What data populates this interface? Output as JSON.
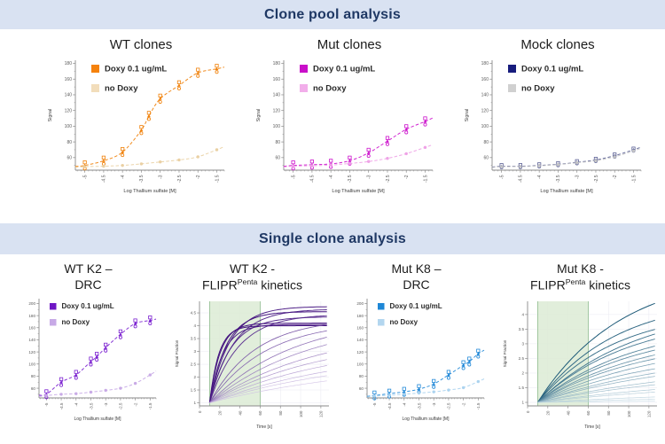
{
  "banners": {
    "top": "Clone pool analysis",
    "bottom": "Single clone analysis"
  },
  "colors": {
    "banner_bg": "#d9e2f2",
    "banner_text": "#1f3864",
    "axis": "#8a8a8a",
    "tick_text": "#5a5a5a",
    "grid": "#e9e9f1",
    "region_fill": "#dcebd5",
    "region_edge": "#8fbc8f",
    "legend_text": "#2a2a2a"
  },
  "chart_data": [
    {
      "id": "wt-clones",
      "type": "scatter",
      "variant": "large",
      "section": "top",
      "title_lines": [
        [
          {
            "t": "WT clones"
          }
        ]
      ],
      "xlabel": "Log Thallium sulfate [M]",
      "ylabel": "Signal",
      "xlim": [
        -5.25,
        -1.3
      ],
      "ylim": [
        44,
        184
      ],
      "xticks": [
        -5,
        -4.5,
        -4,
        -3.5,
        -3,
        -2.5,
        -2,
        -1.5
      ],
      "yticks": [
        60,
        80,
        100,
        120,
        140,
        160,
        180
      ],
      "legend": [
        {
          "label": "Doxy 0.1 ug/mL",
          "color": "#f5820d"
        },
        {
          "label": "no Doxy",
          "color": "#f2ddbb"
        }
      ],
      "series": [
        {
          "name": "Doxy 0.1 ug/mL",
          "color": "#f08008",
          "marker": "cluster",
          "spread": 4,
          "x": [
            -5,
            -4.5,
            -4,
            -3.5,
            -3.3,
            -3,
            -2.5,
            -2,
            -1.5
          ],
          "y": [
            50,
            56,
            67,
            95,
            113,
            135,
            152,
            168,
            173
          ]
        },
        {
          "name": "no Doxy",
          "color": "#e9cfa0",
          "marker": "dot",
          "spread": 0,
          "x": [
            -5,
            -4.5,
            -4,
            -3.5,
            -3,
            -2.5,
            -2,
            -1.5
          ],
          "y": [
            48.5,
            49,
            50,
            52,
            54.5,
            57,
            61,
            70
          ]
        }
      ]
    },
    {
      "id": "mut-clones",
      "type": "scatter",
      "variant": "large",
      "section": "top",
      "title_lines": [
        [
          {
            "t": "Mut clones"
          }
        ]
      ],
      "xlabel": "Log Thallium sulfate [M]",
      "ylabel": "Signal",
      "xlim": [
        -5.25,
        -1.3
      ],
      "ylim": [
        44,
        184
      ],
      "xticks": [
        -5,
        -4.5,
        -4,
        -3.5,
        -3,
        -2.5,
        -2,
        -1.5
      ],
      "yticks": [
        60,
        80,
        100,
        120,
        140,
        160,
        180
      ],
      "legend": [
        {
          "label": "Doxy 0.1 ug/mL",
          "color": "#c90fc9"
        },
        {
          "label": "no Doxy",
          "color": "#f2aeea"
        }
      ],
      "series": [
        {
          "name": "Doxy 0.1 ug/mL",
          "color": "#cc10cc",
          "marker": "cluster",
          "spread": 4,
          "x": [
            -5,
            -4.5,
            -4,
            -3.5,
            -3,
            -2.5,
            -2,
            -1.5
          ],
          "y": [
            50,
            51,
            52,
            56,
            66,
            81,
            96,
            106
          ]
        },
        {
          "name": "no Doxy",
          "color": "#ee9fe6",
          "marker": "dot",
          "spread": 0,
          "x": [
            -5,
            -4.5,
            -4,
            -3.5,
            -3,
            -2.5,
            -2,
            -1.5
          ],
          "y": [
            49,
            49.5,
            50.5,
            52.5,
            55,
            59,
            65,
            73
          ]
        }
      ]
    },
    {
      "id": "mock-clones",
      "type": "scatter",
      "variant": "large",
      "section": "top",
      "title_lines": [
        [
          {
            "t": "Mock clones"
          }
        ]
      ],
      "xlabel": "Log Thallium sulfate [M]",
      "ylabel": "Signal",
      "xlim": [
        -5.25,
        -1.3
      ],
      "ylim": [
        44,
        184
      ],
      "xticks": [
        -5,
        -4.5,
        -4,
        -3.5,
        -3,
        -2.5,
        -2,
        -1.5
      ],
      "yticks": [
        60,
        80,
        100,
        120,
        140,
        160,
        180
      ],
      "legend": [
        {
          "label": "Doxy 0.1 ug/mL",
          "color": "#171c7d"
        },
        {
          "label": "no Doxy",
          "color": "#d0d0d0"
        }
      ],
      "series": [
        {
          "name": "Doxy 0.1 ug/mL",
          "color": "#5a5f94",
          "marker": "cluster",
          "spread": 1.5,
          "x": [
            -5,
            -4.5,
            -4,
            -3.5,
            -3,
            -2.5,
            -2,
            -1.5
          ],
          "y": [
            49,
            49,
            50,
            51.5,
            54,
            57,
            62.5,
            70
          ]
        },
        {
          "name": "no Doxy",
          "color": "#c6c6c6",
          "marker": "dot",
          "spread": 0,
          "x": [
            -5,
            -4.5,
            -4,
            -3.5,
            -3,
            -2.5,
            -2,
            -1.5
          ],
          "y": [
            48.5,
            48.5,
            49.5,
            51,
            53.5,
            56,
            61,
            68.5
          ]
        }
      ]
    },
    {
      "id": "wt-k2-drc",
      "type": "scatter",
      "variant": "small",
      "section": "bottom",
      "title_lines": [
        [
          {
            "t": "WT K2 –"
          }
        ],
        [
          {
            "t": "DRC"
          }
        ]
      ],
      "xlabel": "Log Thallium sulfate [M]",
      "ylabel": "",
      "xlim": [
        -5.25,
        -1.3
      ],
      "ylim": [
        44,
        208
      ],
      "xticks": [
        -5,
        -4.5,
        -4,
        -3.5,
        -3,
        -2.5,
        -2,
        -1.5
      ],
      "yticks": [
        60,
        80,
        100,
        120,
        140,
        160,
        180,
        200
      ],
      "legend": [
        {
          "label": "Doxy 0.1 ug/mL",
          "color": "#6e16c4"
        },
        {
          "label": "no Doxy",
          "color": "#c7a9e6"
        }
      ],
      "series": [
        {
          "name": "Doxy 0.1 ug/mL",
          "color": "#7a1fd0",
          "marker": "cluster",
          "spread": 5,
          "x": [
            -5,
            -4.5,
            -4,
            -3.5,
            -3.3,
            -3,
            -2.5,
            -2,
            -1.5
          ],
          "y": [
            50,
            70,
            82,
            104,
            112,
            127,
            149,
            167,
            172
          ]
        },
        {
          "name": "no Doxy",
          "color": "#c7a9e6",
          "marker": "dot",
          "spread": 0,
          "x": [
            -5,
            -4.5,
            -4,
            -3.5,
            -3,
            -2.5,
            -2,
            -1.5
          ],
          "y": [
            48,
            50,
            51,
            53.5,
            56.5,
            60,
            68,
            82
          ]
        }
      ]
    },
    {
      "id": "wt-k2-kinetics",
      "type": "line",
      "variant": "kinetics",
      "section": "bottom",
      "title_lines": [
        [
          {
            "t": "WT K2 -"
          }
        ],
        [
          {
            "t": "FLIPR"
          },
          {
            "t": "Penta",
            "sup": true
          },
          {
            "t": " kinetics"
          }
        ]
      ],
      "xlabel": "Time [s]",
      "ylabel": "Signal Fraction",
      "xlim": [
        0,
        128
      ],
      "ylim": [
        0.88,
        4.95
      ],
      "xticks": [
        0,
        20,
        40,
        60,
        80,
        100,
        120
      ],
      "yticks": [
        1,
        1.5,
        2,
        2.5,
        3,
        3.5,
        4,
        4.5
      ],
      "grid": true,
      "region": {
        "x0": 10,
        "x1": 60
      },
      "t_start": 10,
      "t_end": 126,
      "curve_model": "y = 1 + a*(1 - exp(-k*(t - 10)))",
      "color_dark": "#43127f",
      "color_light": "#dccfee",
      "curves": [
        {
          "a": 3.75,
          "k": 0.05,
          "tone": 0.05
        },
        {
          "a": 3.65,
          "k": 0.042,
          "tone": 0.1
        },
        {
          "a": 3.55,
          "k": 0.06,
          "tone": 0.0
        },
        {
          "a": 3.45,
          "k": 0.035,
          "tone": 0.15
        },
        {
          "a": 3.35,
          "k": 0.048,
          "tone": 0.1
        },
        {
          "a": 3.1,
          "k": 0.095,
          "tone": 0.0
        },
        {
          "a": 3.05,
          "k": 0.075,
          "tone": 0.05
        },
        {
          "a": 3.0,
          "k": 0.11,
          "tone": 0.0
        },
        {
          "a": 3.3,
          "k": 0.022,
          "tone": 0.35
        },
        {
          "a": 3.2,
          "k": 0.018,
          "tone": 0.4
        },
        {
          "a": 3.4,
          "k": 0.012,
          "tone": 0.45
        },
        {
          "a": 3.3,
          "k": 0.01,
          "tone": 0.55
        },
        {
          "a": 3.0,
          "k": 0.009,
          "tone": 0.6
        },
        {
          "a": 2.6,
          "k": 0.009,
          "tone": 0.65
        },
        {
          "a": 2.4,
          "k": 0.008,
          "tone": 0.72
        },
        {
          "a": 2.2,
          "k": 0.007,
          "tone": 0.78
        },
        {
          "a": 1.9,
          "k": 0.007,
          "tone": 0.85
        },
        {
          "a": 1.7,
          "k": 0.006,
          "tone": 0.9
        }
      ]
    },
    {
      "id": "mut-k8-drc",
      "type": "scatter",
      "variant": "small",
      "section": "bottom",
      "title_lines": [
        [
          {
            "t": "Mut K8 –"
          }
        ],
        [
          {
            "t": "DRC"
          }
        ]
      ],
      "xlabel": "Log Thallium sulfate [M]",
      "ylabel": "",
      "xlim": [
        -5.25,
        -1.3
      ],
      "ylim": [
        44,
        208
      ],
      "xticks": [
        -5,
        -4.5,
        -4,
        -3.5,
        -3,
        -2.5,
        -2,
        -1.5
      ],
      "yticks": [
        60,
        80,
        100,
        120,
        140,
        160,
        180,
        200
      ],
      "legend": [
        {
          "label": "Doxy 0.1 ug/mL",
          "color": "#1e87d6"
        },
        {
          "label": "no Doxy",
          "color": "#b3d6ef"
        }
      ],
      "series": [
        {
          "name": "Doxy 0.1 ug/mL",
          "color": "#2289d8",
          "marker": "cluster",
          "spread": 5,
          "x": [
            -5,
            -4.5,
            -4,
            -3.5,
            -3,
            -2.5,
            -2,
            -1.8,
            -1.5
          ],
          "y": [
            48,
            51,
            54,
            58.5,
            67,
            82,
            98,
            104,
            117
          ]
        },
        {
          "name": "no Doxy",
          "color": "#a9d2ee",
          "marker": "dot",
          "spread": 0,
          "x": [
            -5,
            -4.5,
            -4,
            -3.5,
            -3,
            -2.5,
            -2,
            -1.5
          ],
          "y": [
            47,
            48.5,
            50,
            52,
            54,
            57,
            61,
            71
          ]
        }
      ]
    },
    {
      "id": "mut-k8-kinetics",
      "type": "line",
      "variant": "kinetics",
      "section": "bottom",
      "title_lines": [
        [
          {
            "t": "Mut K8 -"
          }
        ],
        [
          {
            "t": "FLIPR"
          },
          {
            "t": "Penta",
            "sup": true
          },
          {
            "t": " kinetics"
          }
        ]
      ],
      "xlabel": "Time [s]",
      "ylabel": "Signal Fraction",
      "xlim": [
        0,
        128
      ],
      "ylim": [
        0.88,
        4.45
      ],
      "xticks": [
        0,
        20,
        40,
        60,
        80,
        100,
        120
      ],
      "yticks": [
        1,
        1.5,
        2,
        2.5,
        3,
        3.5,
        4
      ],
      "grid": true,
      "region": {
        "x0": 10,
        "x1": 60
      },
      "t_start": 10,
      "t_end": 126,
      "curve_model": "y = 1 + a*(1 - exp(-k*(t - 10)))",
      "color_dark": "#1d5a78",
      "color_light": "#c5dbe6",
      "curves": [
        {
          "a": 4.5,
          "k": 0.012,
          "tone": 0.0
        },
        {
          "a": 3.6,
          "k": 0.013,
          "tone": 0.08
        },
        {
          "a": 3.2,
          "k": 0.013,
          "tone": 0.12
        },
        {
          "a": 3.4,
          "k": 0.01,
          "tone": 0.18
        },
        {
          "a": 3.0,
          "k": 0.011,
          "tone": 0.22
        },
        {
          "a": 2.8,
          "k": 0.01,
          "tone": 0.28
        },
        {
          "a": 2.6,
          "k": 0.01,
          "tone": 0.32
        },
        {
          "a": 2.5,
          "k": 0.009,
          "tone": 0.38
        },
        {
          "a": 2.3,
          "k": 0.009,
          "tone": 0.42
        },
        {
          "a": 2.2,
          "k": 0.008,
          "tone": 0.48
        },
        {
          "a": 1.9,
          "k": 0.008,
          "tone": 0.52
        },
        {
          "a": 1.8,
          "k": 0.007,
          "tone": 0.58
        },
        {
          "a": 1.6,
          "k": 0.007,
          "tone": 0.62
        },
        {
          "a": 1.4,
          "k": 0.006,
          "tone": 0.68
        },
        {
          "a": 1.2,
          "k": 0.006,
          "tone": 0.72
        },
        {
          "a": 1.0,
          "k": 0.005,
          "tone": 0.78
        },
        {
          "a": 0.8,
          "k": 0.005,
          "tone": 0.82
        },
        {
          "a": 0.5,
          "k": 0.004,
          "tone": 0.88
        },
        {
          "a": 0.3,
          "k": 0.004,
          "tone": 0.92
        },
        {
          "a": 0.15,
          "k": 0.003,
          "tone": 0.95
        }
      ]
    }
  ]
}
